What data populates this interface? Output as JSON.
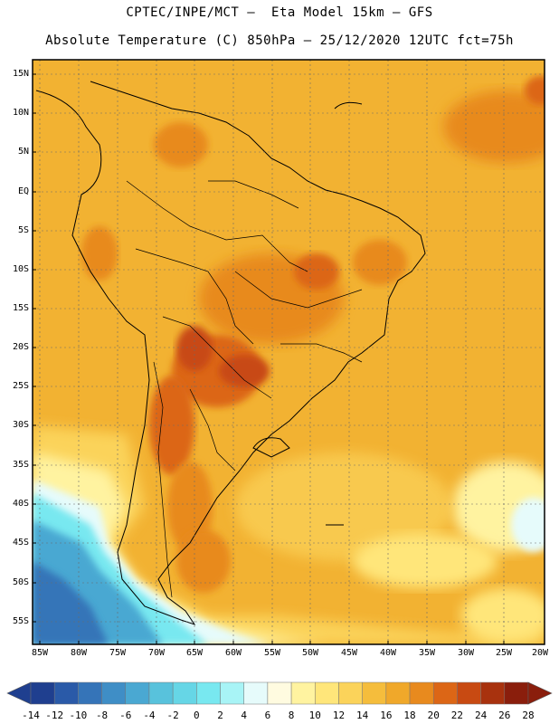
{
  "header": {
    "title_line1": "CPTEC/INPE/MCT –  Eta Model 15km – GFS",
    "title_line2": "Absolute Temperature (C) 850hPa – 25/12/2020 12UTC fct=75h"
  },
  "axes": {
    "lat_labels": [
      "15N",
      "10N",
      "5N",
      "EQ",
      "5S",
      "10S",
      "15S",
      "20S",
      "25S",
      "30S",
      "35S",
      "40S",
      "45S",
      "50S",
      "55S"
    ],
    "lon_labels": [
      "85W",
      "80W",
      "75W",
      "70W",
      "65W",
      "60W",
      "55W",
      "50W",
      "45W",
      "40W",
      "35W",
      "30W",
      "25W",
      "20W"
    ]
  },
  "colorbar": {
    "labels": [
      "-14",
      "-12",
      "-10",
      "-8",
      "-6",
      "-4",
      "-2",
      "0",
      "2",
      "4",
      "6",
      "8",
      "10",
      "12",
      "14",
      "16",
      "18",
      "20",
      "22",
      "24",
      "26",
      "28"
    ],
    "colors": [
      "#1f3f8f",
      "#2a5aa8",
      "#3574b8",
      "#3f8ec6",
      "#4aa8d2",
      "#58c2dc",
      "#66d6e6",
      "#78e8f0",
      "#a8f4f6",
      "#e6fbfb",
      "#fffbe0",
      "#fff3a0",
      "#ffe67a",
      "#fbd35a",
      "#f5bd3c",
      "#f0a82a",
      "#e88a1e",
      "#dc6616",
      "#c84a12",
      "#a8320e",
      "#8a1e0c"
    ]
  }
}
